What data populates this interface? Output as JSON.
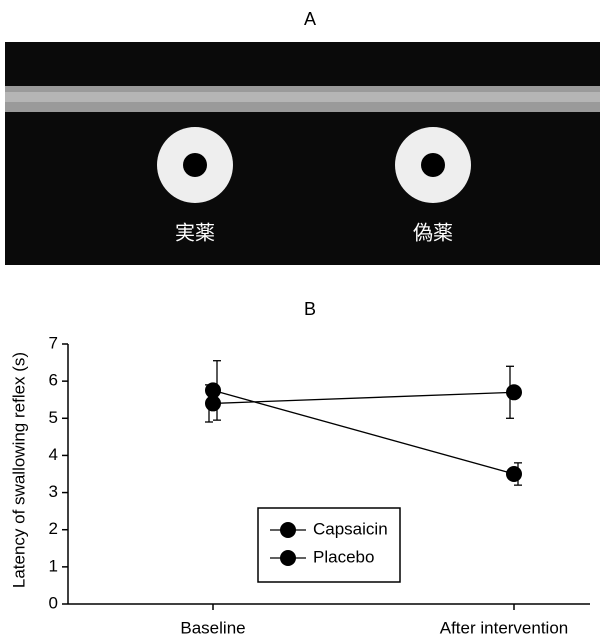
{
  "panel_a": {
    "label": "A",
    "captions": [
      "実薬",
      "偽薬"
    ]
  },
  "chart_data": {
    "type": "line",
    "title": "B",
    "y_label": "Latency of swallowing reflex (s)",
    "categories": [
      "Baseline",
      "After intervention"
    ],
    "series": [
      {
        "name": "Capsaicin",
        "color": "#000000",
        "values": [
          5.75,
          3.5
        ],
        "errors": [
          0.8,
          0.3
        ]
      },
      {
        "name": "Placebo",
        "color": "#000000",
        "values": [
          5.4,
          5.7
        ],
        "errors": [
          0.5,
          0.7
        ]
      }
    ],
    "ylim": [
      0,
      7
    ],
    "yticks": [
      0,
      1,
      2,
      3,
      4,
      5,
      6,
      7
    ],
    "grid": false,
    "legend": "bottom-center"
  }
}
